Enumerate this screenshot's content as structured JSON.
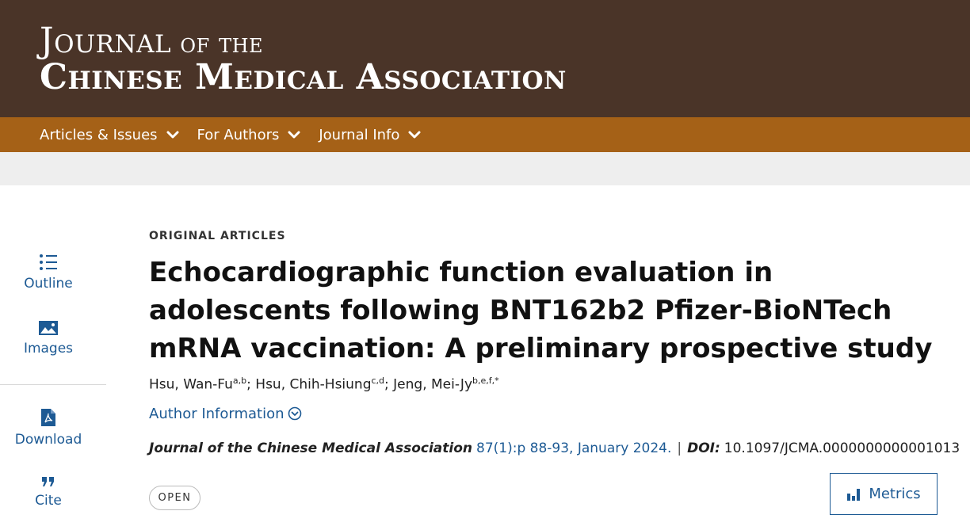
{
  "header": {
    "logo_line1_a": "Journal",
    "logo_line1_b": " of the",
    "logo_line2": "Chinese Medical Association"
  },
  "nav": {
    "items": [
      {
        "label": "Articles & Issues"
      },
      {
        "label": "For Authors"
      },
      {
        "label": "Journal Info"
      }
    ]
  },
  "sidebar": {
    "outline_label": "Outline",
    "images_label": "Images",
    "download_label": "Download",
    "cite_label": "Cite"
  },
  "article": {
    "category": "ORIGINAL ARTICLES",
    "title": "Echocardiographic function evaluation in adolescents following BNT162b2 Pfizer-BioNTech mRNA vaccination: A preliminary prospective study",
    "authors": [
      {
        "name": "Hsu, Wan-Fu",
        "affil": "a,b"
      },
      {
        "name": "Hsu, Chih-Hsiung",
        "affil": "c,d"
      },
      {
        "name": "Jeng, Mei-Jy",
        "affil": "b,e,f,*"
      }
    ],
    "author_info_label": "Author Information",
    "journal_name": "Journal of the Chinese Medical Association",
    "volume_issue": "87(1):p 88-93, January 2024.",
    "separator": "|",
    "doi_label": "DOI:",
    "doi_value": "10.1097/JCMA.0000000000001013",
    "access_badge": "OPEN",
    "metrics_label": "Metrics"
  },
  "colors": {
    "masthead": "#4a3428",
    "navbar": "#a56117",
    "link": "#1d5a94"
  },
  "icons": [
    "chevron-down-icon",
    "outline-list-icon",
    "images-icon",
    "pdf-download-icon",
    "quote-icon",
    "chevron-circle-down-icon",
    "creative-commons-icon",
    "bar-chart-icon"
  ]
}
